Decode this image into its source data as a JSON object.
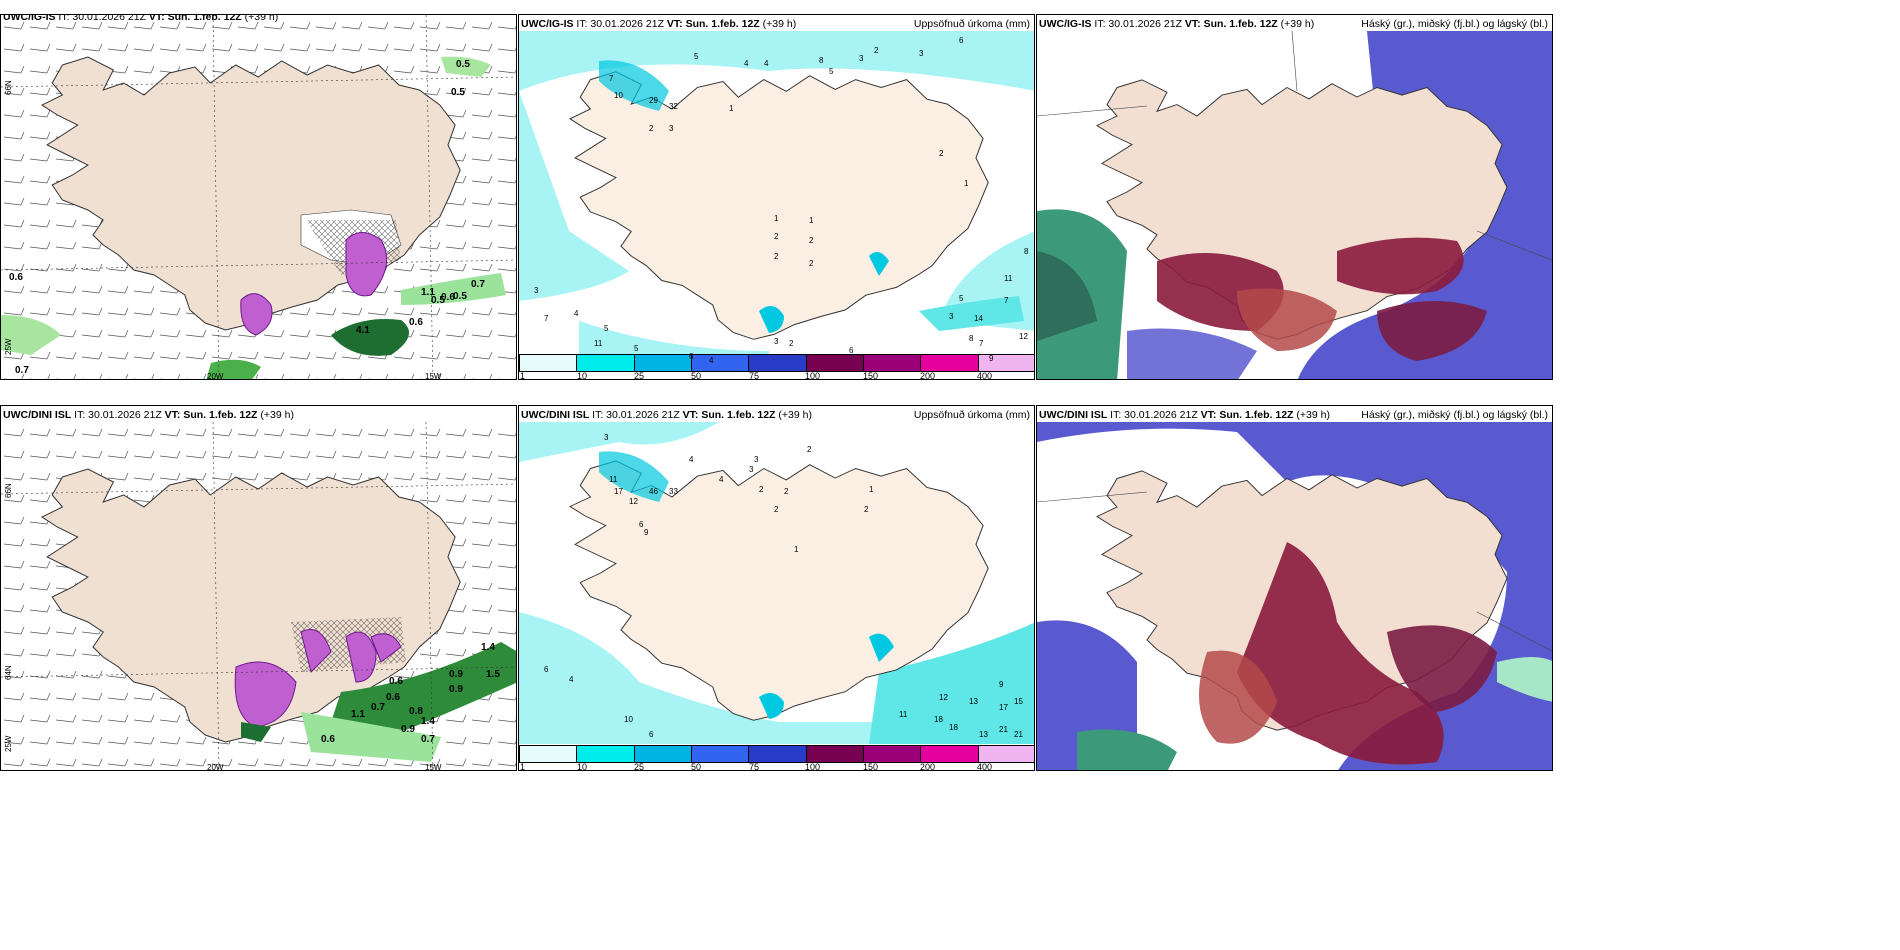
{
  "rows": [
    {
      "model": "UWC/IG-IS",
      "it": "IT: 30.01.2026 21Z",
      "vt_label": "VT:",
      "vt": "Sun. 1.feb. 12Z",
      "lead": "(+39 h)",
      "wind_labels": [
        "0.5",
        "0.5",
        "0.6",
        "1.1",
        "0.5",
        "0.6",
        "0.5",
        "0.7",
        "4.1",
        "0.6",
        "0.7"
      ],
      "precip_labels": [
        "5",
        "4",
        "4",
        "8",
        "5",
        "3",
        "2",
        "3",
        "6",
        "7",
        "10",
        "29",
        "32",
        "1",
        "2",
        "3",
        "1",
        "1",
        "2",
        "2",
        "2",
        "2",
        "2",
        "1",
        "3",
        "7",
        "4",
        "5",
        "11",
        "5",
        "6",
        "4",
        "5",
        "7",
        "3",
        "14",
        "12",
        "8",
        "9",
        "11",
        "7",
        "6",
        "8",
        "3",
        "2"
      ]
    },
    {
      "model": "UWC/DINI ISL",
      "it": "IT: 30.01.2026 21Z",
      "vt_label": "VT:",
      "vt": "Sun. 1.feb. 12Z",
      "lead": "(+39 h)",
      "wind_labels": [
        "0.6",
        "0.7",
        "1.1",
        "1.4",
        "0.9",
        "0.6",
        "0.7",
        "0.6",
        "0.8",
        "0.9",
        "1.4",
        "1.5",
        "0.9"
      ],
      "precip_labels": [
        "3",
        "4",
        "3",
        "2",
        "11",
        "17",
        "12",
        "46",
        "33",
        "6",
        "9",
        "3",
        "4",
        "2",
        "2",
        "2",
        "1",
        "2",
        "1",
        "6",
        "4",
        "10",
        "6",
        "8",
        "9",
        "5",
        "3",
        "12",
        "13",
        "17",
        "15",
        "11",
        "18",
        "18",
        "13",
        "21",
        "21",
        "18",
        "9"
      ]
    }
  ],
  "precip_title": "Uppsöfnuð úrkoma (mm)",
  "cloud_title": "Háský (gr.), miðský (fj.bl.) og lágský (bl.)",
  "axis": {
    "lat66": "66N",
    "lat64": "64N",
    "lon25": "25W",
    "lon20": "20W",
    "lon15": "15W"
  },
  "colorbar": {
    "ticks": [
      "1",
      "10",
      "25",
      "50",
      "75",
      "100",
      "150",
      "200",
      "400"
    ],
    "colors": [
      "#e6fbfb",
      "#00ebeb",
      "#00b4e6",
      "#3264f0",
      "#283cc8",
      "#780050",
      "#9b0078",
      "#e600a0",
      "#f0b4f0"
    ]
  }
}
